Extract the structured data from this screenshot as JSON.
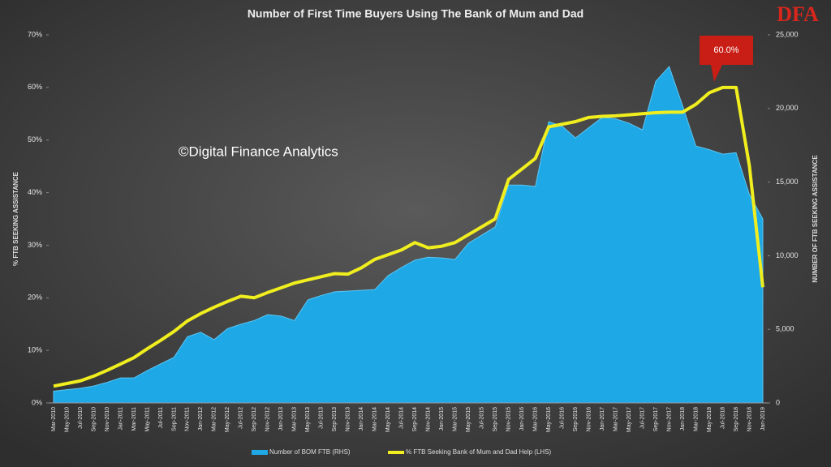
{
  "chart_data": {
    "type": "area-line",
    "title": "Number of First Time Buyers Using The Bank of Mum and Dad",
    "watermark": "©Digital Finance Analytics",
    "logo": "DFA",
    "annotation": "60.0%",
    "ylabel": "% FTB SEEKING ASSISTANCE",
    "y2label": "NUMBER OF FTB SEEKING ASSISTANCE",
    "categories": [
      "Mar-2010",
      "May-2010",
      "Jul-2010",
      "Sep-2010",
      "Nov-2010",
      "Jan-2011",
      "Mar-2011",
      "May-2011",
      "Jul-2011",
      "Sep-2011",
      "Nov-2011",
      "Jan-2012",
      "Mar-2012",
      "May-2012",
      "Jul-2012",
      "Sep-2012",
      "Nov-2012",
      "Jan-2013",
      "Mar-2013",
      "May-2013",
      "Jul-2013",
      "Sep-2013",
      "Nov-2013",
      "Jan-2014",
      "Mar-2014",
      "May-2014",
      "Jul-2014",
      "Sep-2014",
      "Nov-2014",
      "Jan-2015",
      "Mar-2015",
      "May-2015",
      "Jul-2015",
      "Sep-2015",
      "Nov-2015",
      "Jan-2016",
      "Mar-2016",
      "May-2016",
      "Jul-2016",
      "Sep-2016",
      "Nov-2016",
      "Jan-2017",
      "Mar-2017",
      "May-2017",
      "Jul-2017",
      "Sep-2017",
      "Nov-2017",
      "Jan-2018",
      "Mar-2018",
      "May-2018",
      "Jul-2018",
      "Sep-2018",
      "Nov-2018",
      "Jan-2019"
    ],
    "series": [
      {
        "name": "Number of BOM FTB (RHS)",
        "color": "#1fa8e6",
        "axis": "y2",
        "kind": "area",
        "values": [
          800,
          900,
          1000,
          1150,
          1400,
          1700,
          1700,
          2200,
          2650,
          3100,
          4500,
          4800,
          4300,
          5050,
          5350,
          5600,
          6000,
          5900,
          5600,
          7000,
          7300,
          7550,
          7600,
          7650,
          7700,
          8650,
          9200,
          9700,
          9900,
          9850,
          9750,
          10850,
          11400,
          11950,
          14800,
          14800,
          14700,
          19100,
          18800,
          18000,
          18700,
          19400,
          19300,
          19000,
          18550,
          21850,
          22850,
          20200,
          17450,
          17200,
          16900,
          17000,
          14150,
          12500
        ]
      },
      {
        "name": "% FTB Seeking Bank of Mum and Dad Help (LHS)",
        "color": "#f0ee1e",
        "axis": "y",
        "kind": "line",
        "values": [
          3.2,
          3.7,
          4.2,
          5.1,
          6.2,
          7.4,
          8.6,
          10.3,
          11.9,
          13.6,
          15.6,
          17.0,
          18.2,
          19.3,
          20.3,
          20.0,
          21.0,
          21.9,
          22.8,
          23.4,
          24.0,
          24.6,
          24.5,
          25.7,
          27.3,
          28.2,
          29.1,
          30.5,
          29.5,
          29.8,
          30.5,
          32.0,
          33.5,
          35.0,
          42.5,
          44.5,
          46.5,
          52.5,
          53.0,
          53.5,
          54.3,
          54.5,
          54.6,
          54.8,
          55.0,
          55.2,
          55.3,
          55.3,
          56.8,
          59.0,
          60.0,
          60.0,
          45.0,
          22.0
        ]
      }
    ],
    "ylim": [
      0,
      70
    ],
    "yticks": [
      {
        "value": 0,
        "label": "0%"
      },
      {
        "value": 10,
        "label": "10%"
      },
      {
        "value": 20,
        "label": "20%"
      },
      {
        "value": 30,
        "label": "30%"
      },
      {
        "value": 40,
        "label": "40%"
      },
      {
        "value": 50,
        "label": "50%"
      },
      {
        "value": 60,
        "label": "60%"
      },
      {
        "value": 70,
        "label": "70%"
      }
    ],
    "y2lim": [
      0,
      25000
    ],
    "y2ticks": [
      0,
      {
        "value": 5000,
        "label": "5,000"
      },
      {
        "value": 10000,
        "label": "10,000"
      },
      {
        "value": 15000,
        "label": "15,000"
      },
      {
        "value": 20000,
        "label": "20,000"
      },
      {
        "value": 25000,
        "label": "25,000"
      }
    ],
    "grid": false
  }
}
